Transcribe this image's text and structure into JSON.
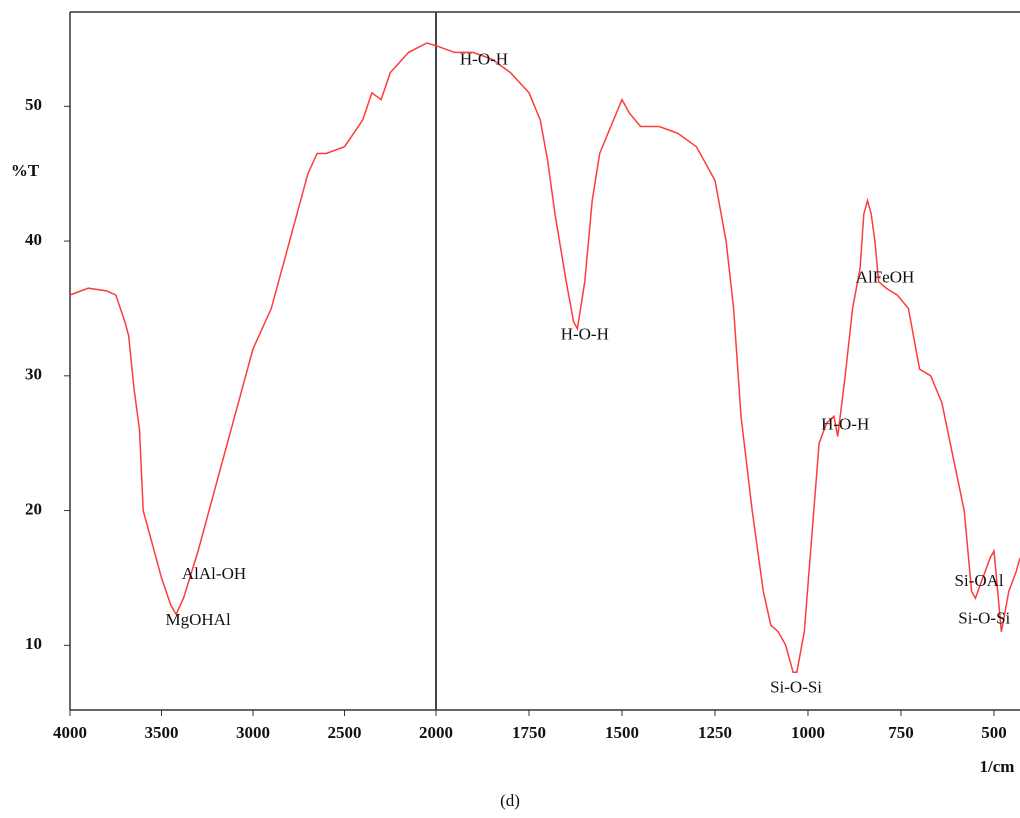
{
  "chart_data": {
    "type": "line",
    "caption": "(d)",
    "x_label": "1/cm",
    "y_label": "%T",
    "xlim": [
      4000,
      430
    ],
    "xbreak": 2000,
    "ylim": [
      5.2,
      57
    ],
    "xticks": [
      4000,
      3500,
      3000,
      2500,
      2000,
      1750,
      1500,
      1250,
      1000,
      750,
      500
    ],
    "yticks": [
      10,
      20,
      30,
      40,
      50
    ],
    "series": [
      {
        "color": "#ff3b3b",
        "x": [
          4000,
          3900,
          3800,
          3750,
          3700,
          3680,
          3650,
          3620,
          3600,
          3550,
          3500,
          3450,
          3420,
          3380,
          3300,
          3200,
          3100,
          3000,
          2900,
          2800,
          2700,
          2650,
          2600,
          2500,
          2450,
          2400,
          2350,
          2300,
          2250,
          2150,
          2050,
          2000,
          1950,
          1900,
          1850,
          1800,
          1750,
          1720,
          1700,
          1680,
          1650,
          1630,
          1620,
          1600,
          1580,
          1560,
          1530,
          1500,
          1480,
          1450,
          1400,
          1350,
          1300,
          1250,
          1220,
          1200,
          1180,
          1150,
          1120,
          1100,
          1080,
          1060,
          1040,
          1030,
          1010,
          990,
          970,
          950,
          930,
          920,
          900,
          880,
          860,
          850,
          840,
          830,
          820,
          810,
          790,
          760,
          730,
          700,
          670,
          640,
          610,
          580,
          560,
          550,
          530,
          510,
          500,
          490,
          480,
          470,
          460,
          440,
          430
        ],
        "values": [
          36,
          36.5,
          36.3,
          36,
          34,
          33,
          29,
          26,
          20,
          17.5,
          15,
          13,
          12.3,
          13.5,
          17,
          22,
          27,
          32,
          35,
          40,
          45,
          46.5,
          46.5,
          47,
          48,
          49,
          51,
          50.5,
          52.5,
          54,
          54.7,
          54.5,
          54,
          54,
          53.5,
          52.5,
          51,
          49,
          46,
          42,
          37,
          34,
          33.5,
          37,
          43,
          46.5,
          48.5,
          50.5,
          49.5,
          48.5,
          48.5,
          48,
          47,
          44.5,
          40,
          35,
          27,
          20,
          14,
          11.5,
          11,
          10,
          8,
          8,
          11,
          18,
          25,
          26.5,
          27,
          25.5,
          30,
          35,
          38,
          42,
          43,
          42,
          40,
          37,
          36.5,
          36,
          35,
          30.5,
          30,
          28,
          24,
          20,
          14,
          13.5,
          15,
          16.5,
          17,
          14,
          11,
          12.5,
          14,
          15.5,
          16.5
        ]
      }
    ],
    "annotations": [
      {
        "text": "H-O-H",
        "x": 1871,
        "y": 53.4
      },
      {
        "text": "H-O-H",
        "x": 1600,
        "y": 33
      },
      {
        "text": "AlFeOH",
        "x": 793,
        "y": 37.2
      },
      {
        "text": "H-O-H",
        "x": 900,
        "y": 26.3
      },
      {
        "text": "AlAl-OH",
        "x": 3213,
        "y": 15.2
      },
      {
        "text": "MgOHAl",
        "x": 3300,
        "y": 11.8
      },
      {
        "text": "Si-O-Si",
        "x": 1032,
        "y": 6.8
      },
      {
        "text": "Si-OAl",
        "x": 540,
        "y": 14.7
      },
      {
        "text": "Si-O-Si",
        "x": 526,
        "y": 11.9
      }
    ]
  }
}
